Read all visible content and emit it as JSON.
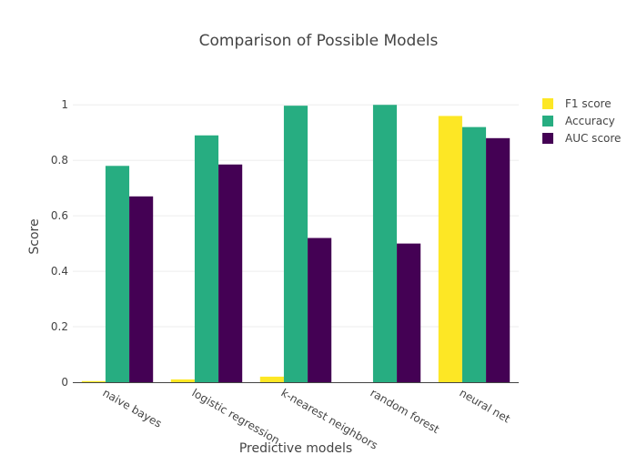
{
  "chart_data": {
    "type": "bar",
    "title": "Comparison of Possible Models",
    "xlabel": "Predictive models",
    "ylabel": "Score",
    "categories": [
      "naive bayes",
      "logistic regression",
      "k-nearest neighbors",
      "random forest",
      "neural net"
    ],
    "series": [
      {
        "name": "F1 score",
        "color": "#fde725",
        "values": [
          0.004,
          0.01,
          0.02,
          0.0,
          0.96
        ]
      },
      {
        "name": "Accuracy",
        "color": "#27ad81",
        "values": [
          0.78,
          0.89,
          0.997,
          1.0,
          0.92
        ]
      },
      {
        "name": "AUC score",
        "color": "#440154",
        "values": [
          0.67,
          0.785,
          0.52,
          0.5,
          0.88
        ]
      }
    ],
    "ylim": [
      0,
      1.05
    ],
    "yticks": [
      0,
      0.2,
      0.4,
      0.6,
      0.8,
      1
    ],
    "ytick_labels": [
      "0",
      "0.2",
      "0.4",
      "0.6",
      "0.8",
      "1"
    ],
    "grid": true,
    "legend_position": "top-right"
  }
}
